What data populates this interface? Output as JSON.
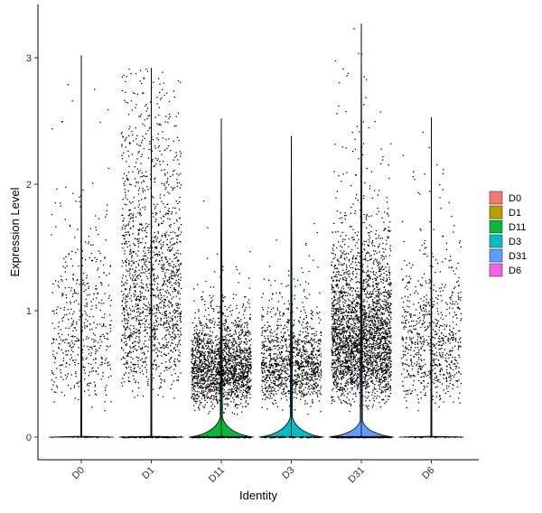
{
  "chart_data": {
    "type": "violin",
    "title": "",
    "xlabel": "Identity",
    "ylabel": "Expression Level",
    "ylim": [
      -0.18,
      3.42
    ],
    "yticks": [
      0,
      1,
      2,
      3
    ],
    "grid": false,
    "legend_position": "right",
    "categories": [
      "D0",
      "D1",
      "D11",
      "D3",
      "D31",
      "D6"
    ],
    "groups": [
      {
        "name": "D0",
        "color": "#F8766D",
        "max": 3.02,
        "n_points": 520,
        "nonzero_fraction": 0.08,
        "median_nonzero": 0.85,
        "spread": 0.6,
        "violin_peak_height": 0.0
      },
      {
        "name": "D1",
        "color": "#B79F00",
        "max": 2.92,
        "n_points": 1700,
        "nonzero_fraction": 0.14,
        "median_nonzero": 1.2,
        "spread": 0.65,
        "violin_peak_height": 0.0
      },
      {
        "name": "D11",
        "color": "#00BA38",
        "max": 2.52,
        "n_points": 2100,
        "nonzero_fraction": 0.22,
        "median_nonzero": 0.55,
        "spread": 0.45,
        "violin_peak_height": 0.16
      },
      {
        "name": "D3",
        "color": "#00BFC4",
        "max": 2.38,
        "n_points": 1300,
        "nonzero_fraction": 0.18,
        "median_nonzero": 0.6,
        "spread": 0.45,
        "violin_peak_height": 0.16
      },
      {
        "name": "D31",
        "color": "#619CFF",
        "max": 3.27,
        "n_points": 3300,
        "nonzero_fraction": 0.26,
        "median_nonzero": 0.8,
        "spread": 0.55,
        "violin_peak_height": 0.13
      },
      {
        "name": "D6",
        "color": "#F564E3",
        "max": 2.53,
        "n_points": 800,
        "nonzero_fraction": 0.09,
        "median_nonzero": 0.75,
        "spread": 0.55,
        "violin_peak_height": 0.0
      }
    ],
    "legend": {
      "entries": [
        "D0",
        "D1",
        "D11",
        "D3",
        "D31",
        "D6"
      ]
    }
  }
}
